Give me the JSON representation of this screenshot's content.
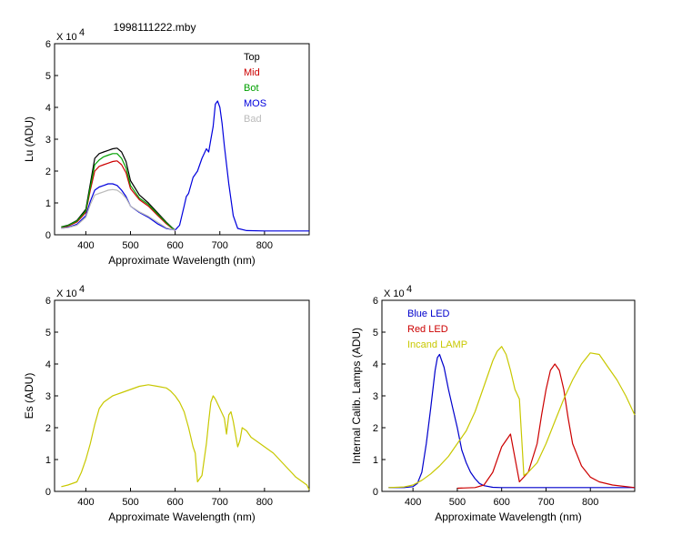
{
  "figure_title": "1998111222.mby",
  "colors": {
    "top": "#000000",
    "mid": "#cc0000",
    "bot": "#00a000",
    "mos": "#0000dd",
    "bad": "#bbbbbb",
    "es": "#c8c800",
    "blue_led": "#0000cc",
    "red_led": "#cc0000",
    "incand": "#c8c800"
  },
  "chart_data": [
    {
      "type": "line",
      "title": "1998111222.mby",
      "xlabel": "Approximate Wavelength (nm)",
      "ylabel": "Lu (ADU)",
      "exponent": "X 10",
      "exponent_power": "4",
      "xlim": [
        330,
        900
      ],
      "ylim": [
        0,
        6
      ],
      "xticks": [
        "400",
        "500",
        "600",
        "700",
        "800"
      ],
      "yticks": [
        "0",
        "1",
        "2",
        "3",
        "4",
        "5",
        "6"
      ],
      "legend_position": "top-right",
      "series": [
        {
          "name": "Top",
          "color_key": "top",
          "x": [
            345,
            360,
            380,
            400,
            410,
            420,
            430,
            440,
            450,
            460,
            470,
            480,
            490,
            500,
            520,
            540,
            560,
            580,
            595,
            600
          ],
          "y": [
            0.25,
            0.3,
            0.45,
            0.8,
            1.6,
            2.4,
            2.55,
            2.6,
            2.65,
            2.7,
            2.72,
            2.6,
            2.3,
            1.7,
            1.25,
            1.0,
            0.7,
            0.4,
            0.2,
            0.15
          ]
        },
        {
          "name": "Mid",
          "color_key": "mid",
          "x": [
            345,
            360,
            380,
            400,
            410,
            420,
            430,
            440,
            450,
            460,
            470,
            480,
            490,
            500,
            520,
            540,
            560,
            580,
            595,
            600
          ],
          "y": [
            0.22,
            0.27,
            0.4,
            0.7,
            1.4,
            2.0,
            2.15,
            2.2,
            2.25,
            2.3,
            2.32,
            2.2,
            1.95,
            1.45,
            1.1,
            0.9,
            0.62,
            0.35,
            0.18,
            0.13
          ]
        },
        {
          "name": "Bot",
          "color_key": "bot",
          "x": [
            345,
            360,
            380,
            400,
            410,
            420,
            430,
            440,
            450,
            460,
            470,
            480,
            490,
            500,
            520,
            540,
            560,
            580,
            595,
            600
          ],
          "y": [
            0.24,
            0.29,
            0.43,
            0.75,
            1.5,
            2.2,
            2.35,
            2.45,
            2.5,
            2.55,
            2.55,
            2.4,
            2.1,
            1.55,
            1.15,
            0.95,
            0.66,
            0.38,
            0.19,
            0.14
          ]
        },
        {
          "name": "MOS",
          "color_key": "mos",
          "x": [
            345,
            360,
            380,
            400,
            410,
            420,
            430,
            440,
            450,
            460,
            470,
            480,
            490,
            500,
            520,
            540,
            560,
            580,
            600,
            610,
            620,
            625,
            630,
            640,
            650,
            660,
            670,
            675,
            680,
            685,
            690,
            695,
            700,
            705,
            710,
            720,
            730,
            740,
            760,
            800,
            900
          ],
          "y": [
            0.2,
            0.23,
            0.33,
            0.6,
            1.05,
            1.4,
            1.5,
            1.55,
            1.6,
            1.6,
            1.55,
            1.4,
            1.2,
            0.9,
            0.7,
            0.55,
            0.35,
            0.2,
            0.15,
            0.3,
            0.9,
            1.2,
            1.3,
            1.8,
            2.0,
            2.4,
            2.7,
            2.6,
            3.0,
            3.4,
            4.1,
            4.2,
            4.0,
            3.5,
            2.8,
            1.6,
            0.6,
            0.2,
            0.13,
            0.12,
            0.12
          ]
        },
        {
          "name": "Bad",
          "color_key": "bad",
          "x": [
            345,
            360,
            380,
            400,
            410,
            420,
            430,
            440,
            450,
            460,
            470,
            480,
            490,
            500,
            520,
            540,
            560,
            580,
            600
          ],
          "y": [
            0.2,
            0.22,
            0.3,
            0.55,
            0.95,
            1.25,
            1.3,
            1.35,
            1.4,
            1.42,
            1.4,
            1.3,
            1.15,
            0.9,
            0.72,
            0.58,
            0.4,
            0.22,
            0.15
          ]
        }
      ]
    },
    {
      "type": "line",
      "title": "",
      "xlabel": "Approximate Wavelength (nm)",
      "ylabel": "Es (ADU)",
      "exponent": "X 10",
      "exponent_power": "4",
      "xlim": [
        330,
        900
      ],
      "ylim": [
        0,
        6
      ],
      "xticks": [
        "400",
        "500",
        "600",
        "700",
        "800"
      ],
      "yticks": [
        "0",
        "1",
        "2",
        "3",
        "4",
        "5",
        "6"
      ],
      "series": [
        {
          "name": "",
          "color_key": "es",
          "x": [
            345,
            360,
            380,
            390,
            400,
            410,
            420,
            430,
            440,
            450,
            460,
            480,
            500,
            520,
            540,
            560,
            580,
            590,
            600,
            610,
            620,
            630,
            640,
            645,
            650,
            660,
            670,
            675,
            680,
            685,
            690,
            700,
            710,
            715,
            720,
            725,
            730,
            740,
            745,
            750,
            760,
            770,
            780,
            800,
            820,
            840,
            860,
            870,
            880,
            890,
            895,
            900
          ],
          "y": [
            0.15,
            0.2,
            0.3,
            0.6,
            1.0,
            1.5,
            2.1,
            2.6,
            2.8,
            2.9,
            3.0,
            3.1,
            3.2,
            3.3,
            3.35,
            3.3,
            3.25,
            3.15,
            3.0,
            2.8,
            2.5,
            2.0,
            1.4,
            1.2,
            0.3,
            0.5,
            1.5,
            2.2,
            2.8,
            3.0,
            2.9,
            2.6,
            2.3,
            1.8,
            2.4,
            2.5,
            2.2,
            1.4,
            1.6,
            2.0,
            1.9,
            1.7,
            1.6,
            1.4,
            1.2,
            0.9,
            0.6,
            0.45,
            0.35,
            0.25,
            0.2,
            0.05
          ]
        }
      ]
    },
    {
      "type": "line",
      "title": "",
      "xlabel": "Approximate Wavelength (nm)",
      "ylabel": "Internal Calib. Lamps (ADU)",
      "exponent": "X 10",
      "exponent_power": "4",
      "xlim": [
        330,
        900
      ],
      "ylim": [
        0,
        6
      ],
      "xticks": [
        "400",
        "500",
        "600",
        "700",
        "800"
      ],
      "yticks": [
        "0",
        "1",
        "2",
        "3",
        "4",
        "5",
        "6"
      ],
      "legend_position": "top-left",
      "series": [
        {
          "name": "Blue LED",
          "color_key": "blue_led",
          "x": [
            345,
            380,
            400,
            410,
            420,
            430,
            440,
            450,
            455,
            460,
            465,
            470,
            480,
            490,
            500,
            510,
            520,
            530,
            540,
            550,
            560,
            580,
            600,
            700,
            900
          ],
          "y": [
            0.12,
            0.12,
            0.15,
            0.25,
            0.6,
            1.5,
            2.6,
            3.8,
            4.2,
            4.3,
            4.1,
            3.9,
            3.2,
            2.6,
            2.0,
            1.3,
            0.9,
            0.6,
            0.4,
            0.25,
            0.18,
            0.13,
            0.12,
            0.12,
            0.12
          ]
        },
        {
          "name": "Red LED",
          "color_key": "red_led",
          "x": [
            500,
            540,
            560,
            580,
            600,
            620,
            640,
            660,
            680,
            690,
            700,
            710,
            720,
            730,
            740,
            750,
            760,
            780,
            800,
            820,
            850,
            900
          ],
          "y": [
            0.1,
            0.12,
            0.2,
            0.6,
            1.4,
            1.8,
            0.3,
            0.6,
            1.5,
            2.4,
            3.2,
            3.8,
            4.0,
            3.8,
            3.2,
            2.3,
            1.5,
            0.8,
            0.45,
            0.3,
            0.2,
            0.12
          ]
        },
        {
          "name": "Incand LAMP",
          "color_key": "incand",
          "x": [
            345,
            380,
            400,
            420,
            440,
            460,
            480,
            500,
            520,
            540,
            560,
            580,
            590,
            600,
            610,
            620,
            630,
            640,
            650,
            660,
            680,
            700,
            720,
            740,
            760,
            780,
            800,
            820,
            840,
            860,
            880,
            900
          ],
          "y": [
            0.12,
            0.14,
            0.2,
            0.35,
            0.55,
            0.8,
            1.1,
            1.5,
            1.9,
            2.5,
            3.3,
            4.1,
            4.4,
            4.55,
            4.3,
            3.8,
            3.2,
            2.9,
            0.5,
            0.6,
            0.9,
            1.5,
            2.2,
            2.9,
            3.5,
            4.0,
            4.35,
            4.3,
            3.9,
            3.5,
            3.0,
            2.4
          ]
        }
      ]
    }
  ]
}
